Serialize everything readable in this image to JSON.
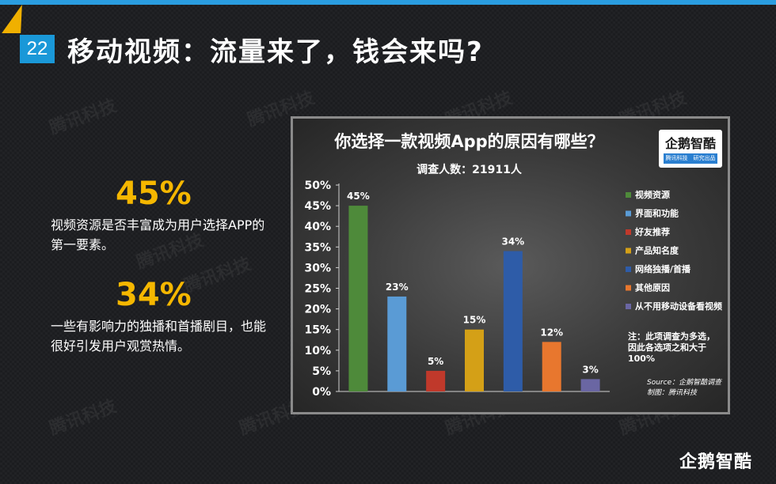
{
  "page": {
    "number": "22",
    "title": "移动视频：流量来了，钱会来吗?",
    "watermark": "腾讯科技",
    "brand": "企鹅智酷"
  },
  "stats": [
    {
      "value": "45%",
      "description": "视频资源是否丰富成为用户选择APP的第一要素。"
    },
    {
      "value": "34%",
      "description": "一些有影响力的独播和首播剧目，也能很好引发用户观赏热情。"
    }
  ],
  "logo": {
    "name": "企鹅智酷",
    "sub": "腾讯科技　研究出品"
  },
  "note": "注：此项调查为多选，因此各选项之和大于100%",
  "source_line1": "Source：企鹅智酷调查",
  "source_line2": "制图：腾讯科技",
  "colors": {
    "accent_blue": "#1a98d8",
    "accent_yellow": "#f5b700"
  },
  "chart_data": {
    "type": "bar",
    "title": "你选择一款视频App的原因有哪些？",
    "subtitle": "调查人数：21911人",
    "categories": [
      "视频资源",
      "界面和功能",
      "好友推荐",
      "产品知名度",
      "网络独播/首播",
      "其他原因",
      "从不用移动设备看视频"
    ],
    "values": [
      45,
      23,
      5,
      15,
      34,
      12,
      3
    ],
    "value_labels": [
      "45%",
      "23%",
      "5%",
      "15%",
      "34%",
      "12%",
      "3%"
    ],
    "colors": [
      "#4e8a3a",
      "#5a9bd5",
      "#c0392b",
      "#d4a017",
      "#2e5ca8",
      "#e8772e",
      "#6a66a3"
    ],
    "ylim": [
      0,
      50
    ],
    "yticks": [
      "0%",
      "5%",
      "10%",
      "15%",
      "20%",
      "25%",
      "30%",
      "35%",
      "40%",
      "45%",
      "50%"
    ],
    "legend_position": "right",
    "grid": false
  }
}
